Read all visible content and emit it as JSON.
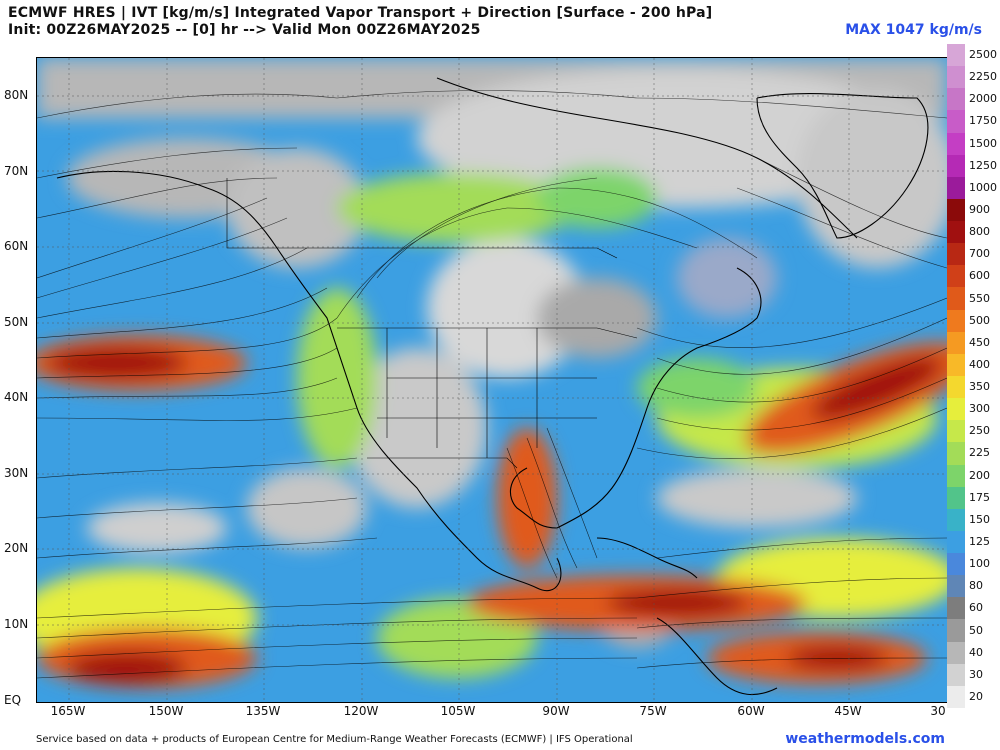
{
  "header": {
    "title_line1": "ECMWF HRES | IVT [kg/m/s] Integrated Vapor Transport + Direction [Surface - 200 hPa]",
    "title_line2": "Init: 00Z26MAY2025 -- [0] hr --> Valid Mon 00Z26MAY2025",
    "max_label": "MAX 1047 kg/m/s"
  },
  "map": {
    "lat_labels": [
      "80N",
      "70N",
      "60N",
      "50N",
      "40N",
      "30N",
      "20N",
      "10N",
      "EQ"
    ],
    "lon_labels": [
      "165W",
      "150W",
      "135W",
      "120W",
      "105W",
      "90W",
      "75W",
      "60W",
      "45W",
      "30"
    ]
  },
  "colorbar": {
    "labels": [
      "2500",
      "2250",
      "2000",
      "1750",
      "1500",
      "1250",
      "1000",
      "900",
      "800",
      "700",
      "600",
      "550",
      "500",
      "450",
      "400",
      "350",
      "300",
      "250",
      "225",
      "200",
      "175",
      "150",
      "125",
      "100",
      "80",
      "60",
      "50",
      "40",
      "30",
      "20"
    ],
    "colors": [
      "#d7a6d7",
      "#cf8fd0",
      "#c776c7",
      "#c85cc8",
      "#c43ec4",
      "#b52ab5",
      "#9b1b9b",
      "#8b0a0a",
      "#a01010",
      "#b82814",
      "#d04018",
      "#e05a1a",
      "#ef7a1e",
      "#f59a22",
      "#f8b928",
      "#f4d82e",
      "#e6ee3c",
      "#c6e84a",
      "#a3dc58",
      "#7dd46a",
      "#52c48a",
      "#39b2c8",
      "#3c9fe2",
      "#4a88dc",
      "#5f86b6",
      "#7d7d7d",
      "#9a9a9a",
      "#b7b7b7",
      "#d2d2d2",
      "#ececec"
    ]
  },
  "footer": {
    "source_text": "Service based on data + products of European Centre for Medium-Range Weather Forecasts (ECMWF) | IFS Operational",
    "website": "weathermodels.com"
  }
}
